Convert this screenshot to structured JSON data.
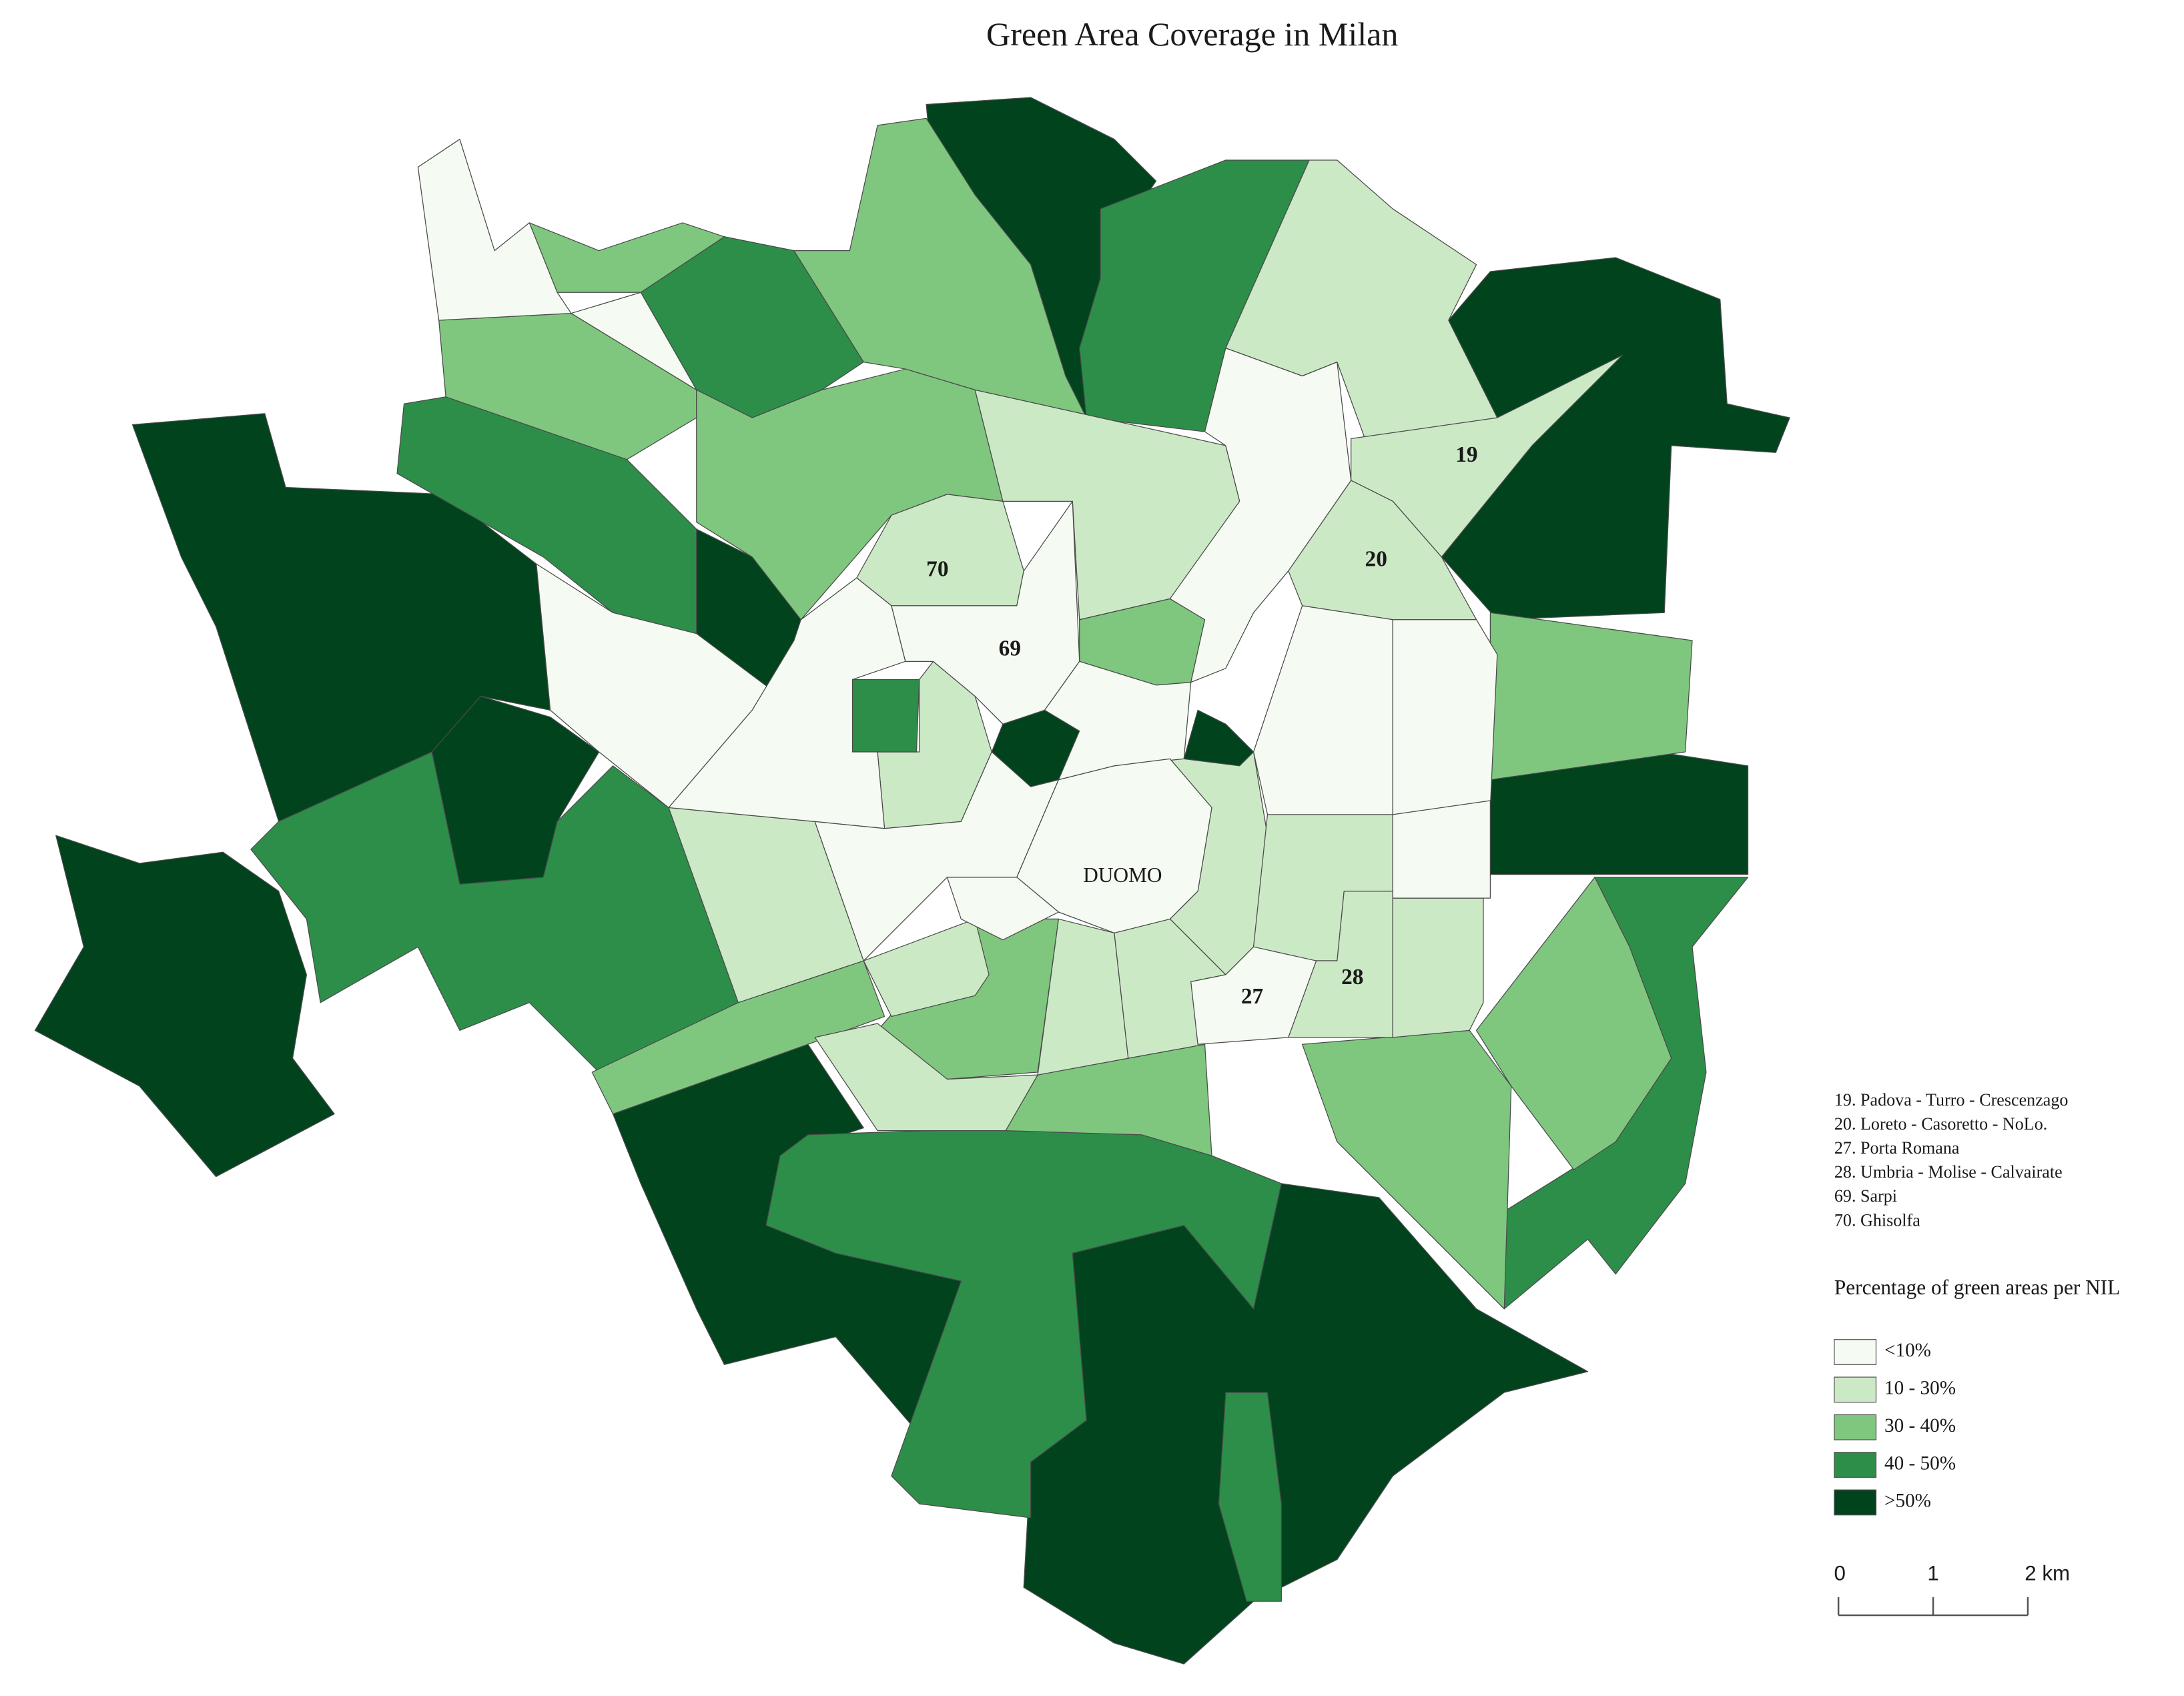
{
  "title": "Green Area Coverage in Milan",
  "map_labels": [
    {
      "text": "19"
    },
    {
      "text": "20"
    },
    {
      "text": "70"
    },
    {
      "text": "69"
    },
    {
      "text": "DUOMO"
    },
    {
      "text": "27"
    },
    {
      "text": "28"
    }
  ],
  "district_list": [
    "19. Padova - Turro - Crescenzago",
    "20. Loreto - Casoretto - NoLo.",
    "27. Porta Romana",
    "28. Umbria - Molise - Calvairate",
    "69. Sarpi",
    "70. Ghisolfa"
  ],
  "legend": {
    "title": "Percentage of green areas per NIL",
    "items": [
      {
        "label": "<10%",
        "color": "#f5fbf2"
      },
      {
        "label": "10 - 30%",
        "color": "#cce9c6"
      },
      {
        "label": "30 - 40%",
        "color": "#7fc77e"
      },
      {
        "label": "40 - 50%",
        "color": "#2d8e4a"
      },
      {
        "label": ">50%",
        "color": "#00431d"
      }
    ]
  },
  "scale_bar": {
    "labels": [
      "0",
      "1",
      "2 km"
    ]
  }
}
